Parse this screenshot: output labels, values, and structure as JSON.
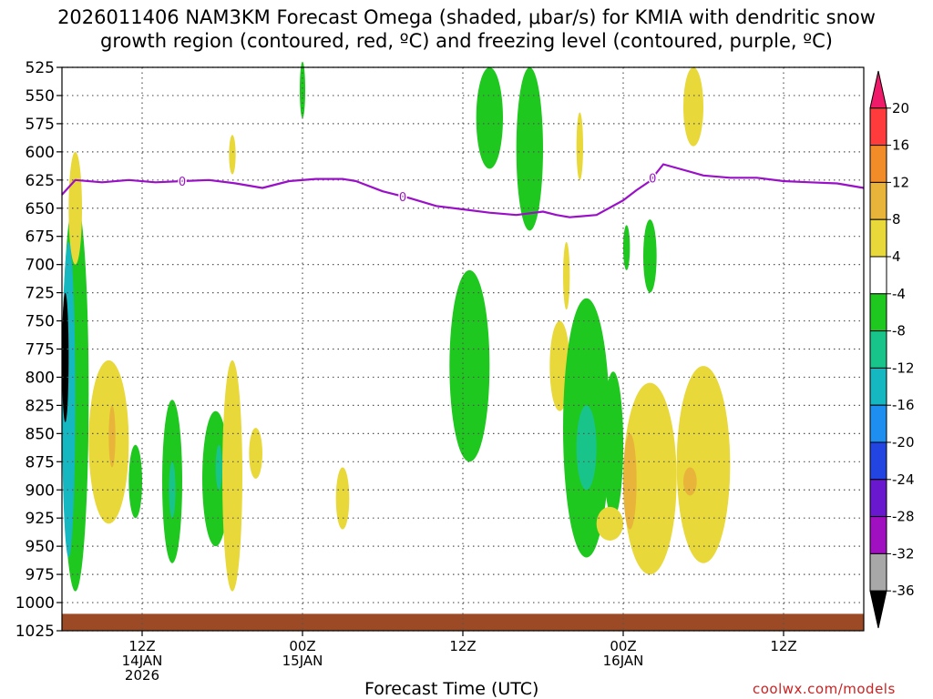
{
  "title_line1": "2026011406 NAM3KM Forecast Omega (shaded, μbar/s) for KMIA with dendritic snow",
  "title_line2": "growth region (contoured, red, ºC) and freezing level (contoured, purple, ºC)",
  "xlabel": "Forecast Time (UTC)",
  "credit": "coolwx.com/models",
  "chart_data": {
    "type": "heatmap",
    "title": "2026011406 NAM3KM Forecast Omega (shaded, μbar/s) for KMIA with dendritic snow growth region (contoured, red, ºC) and freezing level (contoured, purple, ºC)",
    "xlabel": "Forecast Time (UTC)",
    "ylabel": "",
    "y_axis": {
      "scale": "pressure (hPa), inverted",
      "ylim": [
        1025,
        525
      ],
      "ticks": [
        525,
        550,
        575,
        600,
        625,
        650,
        675,
        700,
        725,
        750,
        775,
        800,
        825,
        850,
        875,
        900,
        925,
        950,
        975,
        1000,
        1025
      ]
    },
    "x_axis": {
      "xlim_hours_from_init": [
        0,
        60
      ],
      "ticks": [
        {
          "hour": 6,
          "label1": "12Z",
          "label2": "14JAN",
          "label3": "2026"
        },
        {
          "hour": 18,
          "label1": "00Z",
          "label2": "15JAN",
          "label3": ""
        },
        {
          "hour": 30,
          "label1": "12Z",
          "label2": "",
          "label3": ""
        },
        {
          "hour": 42,
          "label1": "00Z",
          "label2": "16JAN",
          "label3": ""
        },
        {
          "hour": 54,
          "label1": "12Z",
          "label2": "",
          "label3": ""
        }
      ]
    },
    "grid": true,
    "colorbar": {
      "levels": [
        20,
        16,
        12,
        8,
        4,
        -4,
        -8,
        -12,
        -16,
        -20,
        -24,
        -28,
        -32,
        -36
      ],
      "colors": [
        "#ef1a6a",
        "#ff3b3b",
        "#f28c28",
        "#e8b43a",
        "#e8d83a",
        "#ffffff",
        "#1ec81e",
        "#19c48a",
        "#15b8c0",
        "#1e8ff0",
        "#2244e0",
        "#6a18d0",
        "#a010c0",
        "#a8a8a8",
        "#000000"
      ]
    },
    "freezing_level": {
      "label": "0",
      "hours": [
        0,
        1,
        3,
        5,
        7,
        9,
        11,
        13,
        15,
        17,
        19,
        21,
        22,
        24,
        26,
        28,
        30,
        32,
        34,
        36,
        37,
        38,
        40,
        42,
        43,
        44,
        45,
        48,
        50,
        52,
        54,
        56,
        58,
        60
      ],
      "pressure": [
        638,
        625,
        627,
        625,
        627,
        626,
        625,
        628,
        632,
        626,
        624,
        624,
        626,
        635,
        641,
        648,
        651,
        654,
        656,
        653,
        656,
        658,
        656,
        643,
        634,
        626,
        611,
        621,
        623,
        623,
        626,
        627,
        628,
        632
      ]
    },
    "omega_regions": [
      {
        "band": "-8..-4",
        "hours": [
          0,
          2
        ],
        "p": [
          640,
          990
        ]
      },
      {
        "band": "-16..-12",
        "hours": [
          0,
          1
        ],
        "p": [
          680,
          960
        ]
      },
      {
        "band": "-36",
        "hours": [
          0,
          0.5
        ],
        "p": [
          725,
          840
        ]
      },
      {
        "band": "4..8",
        "hours": [
          0.5,
          1.5
        ],
        "p": [
          600,
          700
        ]
      },
      {
        "band": "4..8",
        "hours": [
          2,
          5
        ],
        "p": [
          785,
          930
        ]
      },
      {
        "band": "8..12",
        "hours": [
          3.5,
          4
        ],
        "p": [
          825,
          880
        ]
      },
      {
        "band": "-8..-4",
        "hours": [
          5,
          6
        ],
        "p": [
          860,
          925
        ]
      },
      {
        "band": "-8..-4",
        "hours": [
          7.5,
          9
        ],
        "p": [
          820,
          965
        ]
      },
      {
        "band": "-12..-8",
        "hours": [
          8,
          8.5
        ],
        "p": [
          875,
          925
        ]
      },
      {
        "band": "-8..-4",
        "hours": [
          10.5,
          12.5
        ],
        "p": [
          830,
          950
        ]
      },
      {
        "band": "-12..-8",
        "hours": [
          11.5,
          12
        ],
        "p": [
          860,
          900
        ]
      },
      {
        "band": "4..8",
        "hours": [
          12,
          13.5
        ],
        "p": [
          785,
          990
        ]
      },
      {
        "band": "4..8",
        "hours": [
          14,
          15
        ],
        "p": [
          845,
          890
        ]
      },
      {
        "band": "4..8",
        "hours": [
          12.5,
          13
        ],
        "p": [
          585,
          620
        ]
      },
      {
        "band": "-8..-4",
        "hours": [
          17.8,
          18.2
        ],
        "p": [
          520,
          570
        ]
      },
      {
        "band": "4..8",
        "hours": [
          20.5,
          21.5
        ],
        "p": [
          880,
          935
        ]
      },
      {
        "band": "-8..-4",
        "hours": [
          29,
          32
        ],
        "p": [
          705,
          875
        ]
      },
      {
        "band": "-8..-4",
        "hours": [
          31,
          33
        ],
        "p": [
          525,
          615
        ]
      },
      {
        "band": "-8..-4",
        "hours": [
          34,
          36
        ],
        "p": [
          525,
          670
        ]
      },
      {
        "band": "4..8",
        "hours": [
          37.5,
          38
        ],
        "p": [
          680,
          740
        ]
      },
      {
        "band": "4..8",
        "hours": [
          36.5,
          38
        ],
        "p": [
          750,
          830
        ]
      },
      {
        "band": "4..8",
        "hours": [
          38.5,
          39
        ],
        "p": [
          565,
          625
        ]
      },
      {
        "band": "-8..-4",
        "hours": [
          37.5,
          41
        ],
        "p": [
          730,
          960
        ]
      },
      {
        "band": "-12..-8",
        "hours": [
          38.5,
          40
        ],
        "p": [
          825,
          900
        ]
      },
      {
        "band": "-8..-4",
        "hours": [
          40.5,
          42
        ],
        "p": [
          795,
          925
        ]
      },
      {
        "band": "4..8",
        "hours": [
          40,
          42
        ],
        "p": [
          915,
          945
        ]
      },
      {
        "band": "4..8",
        "hours": [
          42,
          46
        ],
        "p": [
          805,
          975
        ]
      },
      {
        "band": "8..12",
        "hours": [
          42,
          43
        ],
        "p": [
          850,
          935
        ]
      },
      {
        "band": "-8..-4",
        "hours": [
          42,
          42.5
        ],
        "p": [
          665,
          705
        ]
      },
      {
        "band": "-8..-4",
        "hours": [
          43.5,
          44.5
        ],
        "p": [
          660,
          725
        ]
      },
      {
        "band": "4..8",
        "hours": [
          46,
          50
        ],
        "p": [
          790,
          965
        ]
      },
      {
        "band": "8..12",
        "hours": [
          46.5,
          47.5
        ],
        "p": [
          880,
          905
        ]
      },
      {
        "band": "4..8",
        "hours": [
          46.5,
          48
        ],
        "p": [
          525,
          595
        ]
      }
    ],
    "terrain_band_p": [
      1010,
      1025
    ]
  }
}
